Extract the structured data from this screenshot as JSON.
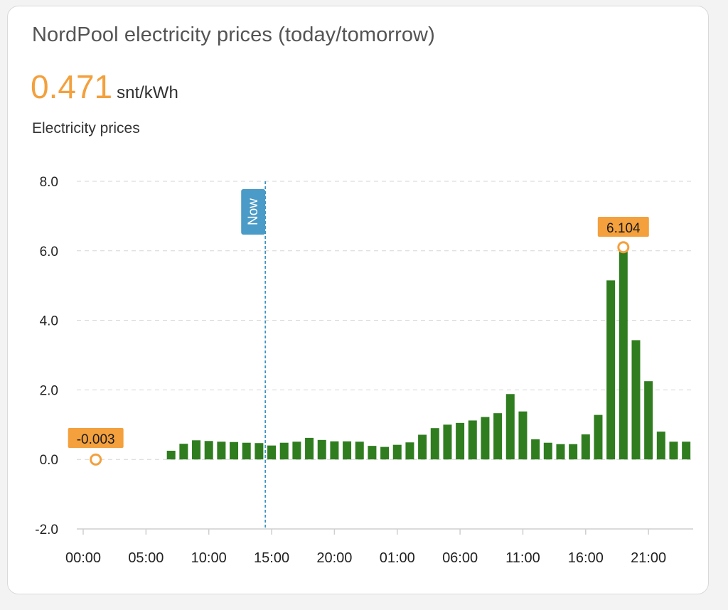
{
  "card": {
    "title": "NordPool electricity prices (today/tomorrow)",
    "current_value": "0.471",
    "unit": "snt/kWh",
    "series_label": "Electricity prices"
  },
  "colors": {
    "bar": "#2f7d1f",
    "accent": "#f3a03d",
    "now_line": "#3c93c4",
    "grid": "#d6d6d6"
  },
  "chart_data": {
    "type": "bar",
    "y_ticks": [
      "8.0",
      "6.0",
      "4.0",
      "2.0",
      "0.0",
      "-2.0"
    ],
    "ylim": [
      -2,
      8
    ],
    "x_tick_labels": [
      "00:00",
      "05:00",
      "10:00",
      "15:00",
      "20:00",
      "01:00",
      "06:00",
      "11:00",
      "16:00",
      "21:00"
    ],
    "grid": true,
    "now_marker": {
      "label": "Now",
      "hour": 14.5
    },
    "min_marker": {
      "label": "-0.003",
      "hour": 1,
      "value": -0.003
    },
    "max_marker": {
      "label": "6.104",
      "hour": 43,
      "value": 6.104
    },
    "bars_start_hour": 7,
    "values": [
      0.25,
      0.45,
      0.55,
      0.53,
      0.51,
      0.5,
      0.48,
      0.47,
      0.4,
      0.48,
      0.51,
      0.62,
      0.56,
      0.52,
      0.52,
      0.51,
      0.39,
      0.36,
      0.42,
      0.49,
      0.71,
      0.9,
      1.0,
      1.05,
      1.12,
      1.22,
      1.33,
      1.88,
      1.38,
      0.58,
      0.48,
      0.44,
      0.44,
      0.72,
      1.28,
      5.15,
      6.104,
      3.43,
      2.25,
      0.8,
      0.51,
      0.51
    ]
  }
}
